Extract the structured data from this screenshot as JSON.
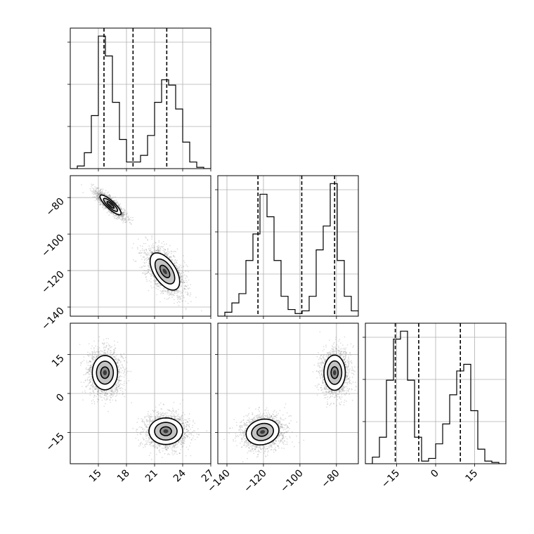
{
  "chart_data": {
    "type": "corner",
    "parameters": [
      {
        "id": "p0",
        "range": [
          12,
          27
        ],
        "ticks": [
          15,
          18,
          21,
          24,
          27
        ],
        "quantile_lines": [
          15.6,
          18.7,
          22.3
        ]
      },
      {
        "id": "p1",
        "range": [
          -145,
          -68
        ],
        "ticks": [
          -140,
          -120,
          -100,
          -80
        ],
        "quantile_lines": [
          -123,
          -99,
          -81
        ]
      },
      {
        "id": "p2",
        "range": [
          -27,
          27
        ],
        "ticks": [
          -15,
          0,
          15
        ],
        "quantile_lines": [
          -15.5,
          -6.5,
          9.5
        ]
      }
    ],
    "histograms": [
      {
        "param": "p0",
        "bin_edges": [
          12.0,
          12.75,
          13.5,
          14.25,
          15.0,
          15.75,
          16.5,
          17.25,
          18.0,
          18.75,
          19.5,
          20.25,
          21.0,
          21.75,
          22.5,
          23.25,
          24.0,
          24.75,
          25.5,
          26.25,
          27.0
        ],
        "counts": [
          0.0,
          0.02,
          0.12,
          0.4,
          1.0,
          0.85,
          0.5,
          0.22,
          0.05,
          0.05,
          0.1,
          0.25,
          0.5,
          0.67,
          0.63,
          0.45,
          0.2,
          0.05,
          0.01,
          0.0
        ]
      },
      {
        "param": "p1",
        "bin_edges": [
          -145.0,
          -141.15,
          -137.3,
          -133.45,
          -129.6,
          -125.75,
          -121.9,
          -118.05,
          -114.2,
          -110.35,
          -106.5,
          -102.65,
          -98.8,
          -94.95,
          -91.1,
          -87.25,
          -83.4,
          -79.55,
          -75.7,
          -71.85,
          -68.0
        ],
        "counts": [
          0.0,
          0.03,
          0.1,
          0.17,
          0.42,
          0.62,
          0.92,
          0.75,
          0.42,
          0.15,
          0.05,
          0.02,
          0.04,
          0.15,
          0.5,
          0.68,
          1.0,
          0.42,
          0.15,
          0.04
        ]
      },
      {
        "param": "p2",
        "bin_edges": [
          -27.0,
          -24.3,
          -21.6,
          -18.9,
          -16.2,
          -13.5,
          -10.8,
          -8.1,
          -5.4,
          -2.7,
          0.0,
          2.7,
          5.4,
          8.1,
          10.8,
          13.5,
          16.2,
          18.9,
          21.6,
          24.3,
          27.0
        ],
        "counts": [
          0.0,
          0.05,
          0.2,
          0.63,
          0.94,
          1.0,
          0.63,
          0.2,
          0.02,
          0.04,
          0.15,
          0.3,
          0.52,
          0.7,
          0.75,
          0.4,
          0.11,
          0.02,
          0.01,
          0.0
        ]
      }
    ],
    "hist_ytick_fractions": [
      0.3,
      0.6,
      0.9
    ],
    "pairs": [
      {
        "x": "p0",
        "y": "p1",
        "modes": [
          {
            "center": [
              16.3,
              -84
            ],
            "sd": [
              0.75,
              3.6
            ],
            "corr": -0.85
          },
          {
            "center": [
              22.1,
              -120.5
            ],
            "sd": [
              1.05,
              6.8
            ],
            "corr": -0.55
          }
        ]
      },
      {
        "x": "p0",
        "y": "p2",
        "modes": [
          {
            "center": [
              15.7,
              8
            ],
            "sd": [
              0.9,
              4.4
            ],
            "corr": 0.0
          },
          {
            "center": [
              22.2,
              -14.5
            ],
            "sd": [
              1.2,
              3.4
            ],
            "corr": 0.0
          }
        ]
      },
      {
        "x": "p1",
        "y": "p2",
        "modes": [
          {
            "center": [
              -120.5,
              -14.8
            ],
            "sd": [
              6.0,
              3.3
            ],
            "corr": 0.15
          },
          {
            "center": [
              -81,
              8
            ],
            "sd": [
              3.9,
              4.5
            ],
            "corr": 0.0
          }
        ]
      }
    ],
    "contour_levels": [
      0.5,
      1.0,
      1.5
    ],
    "colors": {
      "lines": "#000000",
      "points": "#6e6e6e",
      "grid": "#b0b0b0"
    },
    "grid": true
  }
}
